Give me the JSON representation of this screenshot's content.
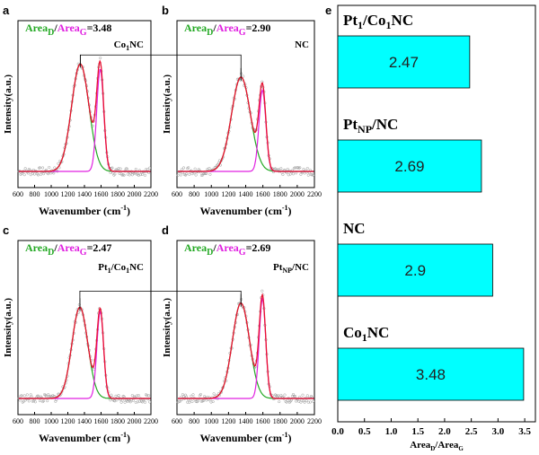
{
  "chart_data": [
    {
      "panel": "a",
      "type": "line",
      "ratio_value": "3.48",
      "sample": "Co1NC",
      "sample_main": "Co",
      "sample_sub": "1",
      "sample_tail": "NC",
      "xlabel": "Wavenumber (cm-1)",
      "xlabel_main": "Wavenumber (cm",
      "xlabel_sup": "-1",
      "xlabel_tail": ")",
      "ylabel": "Intensity(a.u.)",
      "xlim": [
        600,
        2200
      ],
      "xticks": [
        600,
        800,
        1000,
        1200,
        1400,
        1600,
        1800,
        2000,
        2200
      ],
      "peaks": {
        "D_center": 1350,
        "D_width": 105,
        "D_height": 0.82,
        "G_center": 1590,
        "G_width": 42,
        "G_height": 0.78
      },
      "series": [
        {
          "name": "D",
          "color": "#2ca02c"
        },
        {
          "name": "G",
          "color": "#e01ae0"
        },
        {
          "name": "fit",
          "color": "#e8102f"
        }
      ]
    },
    {
      "panel": "b",
      "type": "line",
      "ratio_value": "2.90",
      "sample": "NC",
      "sample_main": "NC",
      "sample_sub": "",
      "sample_tail": "",
      "xlabel": "Wavenumber (cm-1)",
      "xlabel_main": "Wavenumber (cm",
      "xlabel_sup": "-1",
      "xlabel_tail": ")",
      "ylabel": "Intensity(a.u.)",
      "xlim": [
        600,
        2200
      ],
      "xticks": [
        600,
        800,
        1000,
        1200,
        1400,
        1600,
        1800,
        2000,
        2200
      ],
      "peaks": {
        "D_center": 1345,
        "D_width": 110,
        "D_height": 0.72,
        "G_center": 1595,
        "G_width": 40,
        "G_height": 0.62
      },
      "series": [
        {
          "name": "D",
          "color": "#2ca02c"
        },
        {
          "name": "G",
          "color": "#e01ae0"
        },
        {
          "name": "fit",
          "color": "#e8102f"
        }
      ]
    },
    {
      "panel": "c",
      "type": "line",
      "ratio_value": "2.47",
      "sample": "Pt1/Co1NC",
      "sample_main": "Pt",
      "sample_sub": "1",
      "sample_tail": "/Co",
      "sample_sub2": "1",
      "sample_tail2": "NC",
      "xlabel": "Wavenumber (cm-1)",
      "xlabel_main": "Wavenumber (cm",
      "xlabel_sup": "-1",
      "xlabel_tail": ")",
      "ylabel": "Intensity(a.u.)",
      "xlim": [
        600,
        2200
      ],
      "xticks": [
        600,
        800,
        1000,
        1200,
        1400,
        1600,
        1800,
        2000,
        2200
      ],
      "peaks": {
        "D_center": 1345,
        "D_width": 95,
        "D_height": 0.66,
        "G_center": 1590,
        "G_width": 40,
        "G_height": 0.63
      },
      "series": [
        {
          "name": "D",
          "color": "#2ca02c"
        },
        {
          "name": "G",
          "color": "#e01ae0"
        },
        {
          "name": "fit",
          "color": "#e8102f"
        }
      ]
    },
    {
      "panel": "d",
      "type": "line",
      "ratio_value": "2.69",
      "sample": "PtNP/NC",
      "sample_main": "Pt",
      "sample_sub": "NP",
      "sample_tail": "/NC",
      "xlabel": "Wavenumber (cm-1)",
      "xlabel_main": "Wavenumber (cm",
      "xlabel_sup": "-1",
      "xlabel_tail": ")",
      "ylabel": "Intensity(a.u.)",
      "xlim": [
        600,
        2200
      ],
      "xticks": [
        600,
        800,
        1000,
        1200,
        1400,
        1600,
        1800,
        2000,
        2200
      ],
      "peaks": {
        "D_center": 1345,
        "D_width": 100,
        "D_height": 0.69,
        "G_center": 1595,
        "G_width": 38,
        "G_height": 0.72
      },
      "series": [
        {
          "name": "D",
          "color": "#2ca02c"
        },
        {
          "name": "G",
          "color": "#e01ae0"
        },
        {
          "name": "fit",
          "color": "#e8102f"
        }
      ]
    },
    {
      "panel": "e",
      "type": "bar",
      "orientation": "horizontal",
      "categories": [
        "Pt1/Co1NC",
        "PtNP/NC",
        "NC",
        "Co1NC"
      ],
      "values": [
        2.47,
        2.69,
        2.9,
        3.48
      ],
      "value_labels": [
        "2.47",
        "2.69",
        "2.9",
        "3.48"
      ],
      "xlabel": "AreaD/AreaG",
      "xlim": [
        0.0,
        3.7
      ],
      "xticks": [
        "0.0",
        "0.5",
        "1.0",
        "1.5",
        "2.0",
        "2.5",
        "3.0",
        "3.5"
      ],
      "bar_color": "#00ffff"
    }
  ],
  "labels": {
    "area": "Area",
    "sub_d": "D",
    "sub_g": "G",
    "slash": "/",
    "equals": "=",
    "panel_e_xlabel_main": "Area",
    "panel_e_xlabel_sub1": "D",
    "panel_e_xlabel_mid": "/Area",
    "panel_e_xlabel_sub2": "G",
    "panel_letters": [
      "a",
      "b",
      "c",
      "d",
      "e"
    ]
  },
  "colors": {
    "D": "#22a822",
    "G": "#e020e0",
    "fit": "#e8102f",
    "axis": "#000000",
    "bar": "#00ffff"
  }
}
